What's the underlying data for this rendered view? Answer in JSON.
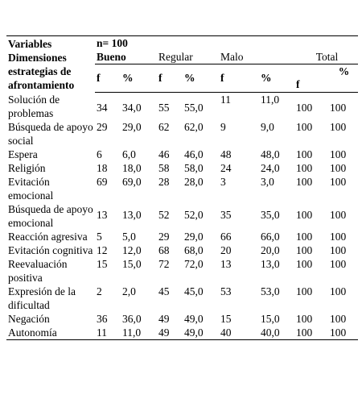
{
  "header": {
    "lines": [
      "Variables",
      "Dimensiones",
      "estrategias de",
      "afrontamiento"
    ],
    "n": "n= 100",
    "groups": [
      "Bueno",
      "Regular",
      "Malo",
      "Total"
    ],
    "subcols": [
      "f",
      "%",
      "f",
      "%",
      "f",
      "%",
      "f",
      "%"
    ]
  },
  "table": {
    "rows": [
      [
        "Solución de problemas",
        34,
        "34,0",
        55,
        "55,0",
        11,
        "11,0",
        100,
        100
      ],
      [
        "Búsqueda de apoyo social",
        29,
        "29,0",
        62,
        "62,0",
        9,
        "9,0",
        100,
        100
      ],
      [
        "Espera",
        6,
        "6,0",
        46,
        "46,0",
        48,
        "48,0",
        100,
        100
      ],
      [
        "Religión",
        18,
        "18,0",
        58,
        "58,0",
        24,
        "24,0",
        100,
        100
      ],
      [
        "Evitación emocional",
        69,
        "69,0",
        28,
        "28,0",
        3,
        "3,0",
        100,
        100
      ],
      [
        "Búsqueda de apoyo emocional",
        13,
        "13,0",
        52,
        "52,0",
        35,
        "35,0",
        100,
        100
      ],
      [
        "Reacción agresiva",
        5,
        "5,0",
        29,
        "29,0",
        66,
        "66,0",
        100,
        100
      ],
      [
        "Evitación cognitiva",
        12,
        "12,0",
        68,
        "68,0",
        20,
        "20,0",
        100,
        100
      ],
      [
        "Reevaluación positiva",
        15,
        "15,0",
        72,
        "72,0",
        13,
        "13,0",
        100,
        100
      ],
      [
        "Expresión de la dificultad",
        2,
        "2,0",
        45,
        "45,0",
        53,
        "53,0",
        100,
        100
      ],
      [
        "Negación",
        36,
        "36,0",
        49,
        "49,0",
        15,
        "15,0",
        100,
        100
      ],
      [
        "Autonomía",
        11,
        "11,0",
        49,
        "49,0",
        40,
        "40,0",
        100,
        100
      ]
    ]
  }
}
